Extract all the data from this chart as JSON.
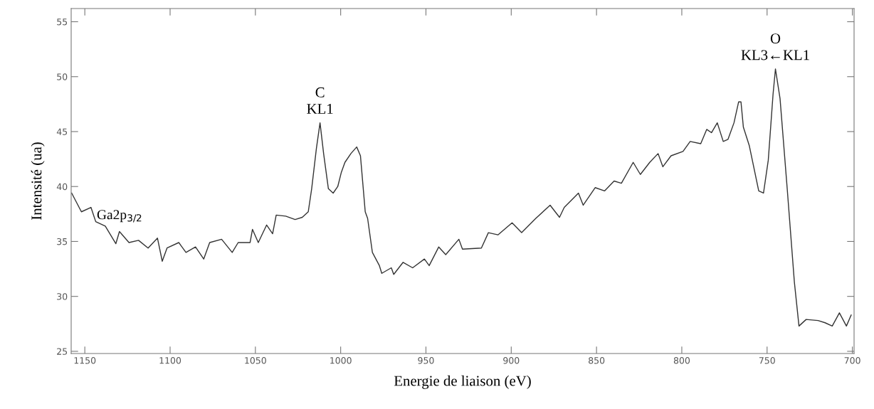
{
  "chart_data": {
    "type": "line",
    "xlabel": "Energie de liaison (eV)",
    "ylabel": "Intensité (ua)",
    "xlim": [
      1158,
      699
    ],
    "ylim": [
      24.8,
      56.2
    ],
    "xticks": [
      1150,
      1100,
      1050,
      1000,
      950,
      900,
      850,
      800,
      750,
      700
    ],
    "yticks": [
      25,
      30,
      35,
      40,
      45,
      50,
      55
    ],
    "grid": false,
    "marker": "none",
    "line_style": "solid",
    "annotations": [
      {
        "text": "Ga2p$_{3/2}$",
        "x": 1143,
        "y": 37.3
      },
      {
        "text": "C\nKL1",
        "x": 1012.1,
        "y": 45.8
      },
      {
        "text": "O\nKL3←KL1",
        "x": 745.1,
        "y": 50.7
      }
    ],
    "series": [
      {
        "color": "#333333",
        "x": [
          1157.7,
          1152,
          1146.4,
          1143.6,
          1138,
          1131.8,
          1129.7,
          1124.1,
          1118.5,
          1112.9,
          1107.4,
          1104.6,
          1101.8,
          1094.9,
          1090.7,
          1085.1,
          1080.3,
          1076.8,
          1069.8,
          1063.6,
          1060.1,
          1053.1,
          1051.7,
          1048.3,
          1043.4,
          1039.9,
          1037.8,
          1032.2,
          1026.7,
          1022.5,
          1019.0,
          1017.0,
          1014.2,
          1012.1,
          1010.0,
          1007.2,
          1004.4,
          1001.7,
          999.6,
          997.5,
          994.0,
          990.6,
          988.4,
          985.6,
          984.2,
          981.4,
          977.3,
          975.9,
          970.3,
          968.9,
          963.4,
          957.8,
          950.9,
          948.1,
          942.5,
          938.4,
          930.7,
          928.6,
          917.5,
          913.4,
          907.8,
          899.5,
          893.9,
          885.6,
          877.2,
          871.7,
          868.9,
          860.6,
          857.8,
          850.8,
          845.3,
          839.7,
          835.4,
          828.5,
          824.3,
          818.8,
          813.9,
          811.1,
          806.3,
          799.3,
          795.1,
          788.9,
          785.4,
          782.6,
          779.2,
          775.7,
          772.9,
          769.4,
          766.7,
          765.3,
          763.9,
          760.4,
          754.9,
          752.1,
          749.3,
          746.5,
          745.1,
          742.4,
          738.2,
          734.0,
          731.3,
          727.1,
          720.1,
          716.0,
          711.8,
          707.6,
          703.5,
          700.7
        ],
        "values": [
          39.4,
          37.7,
          38.1,
          36.8,
          36.4,
          34.8,
          35.9,
          34.9,
          35.1,
          34.4,
          35.3,
          33.2,
          34.4,
          34.9,
          34.0,
          34.5,
          33.4,
          34.9,
          35.2,
          34.0,
          34.9,
          34.9,
          36.1,
          34.9,
          36.5,
          35.7,
          37.4,
          37.3,
          37.0,
          37.2,
          37.7,
          39.8,
          43.5,
          45.8,
          43.0,
          39.8,
          39.4,
          40.0,
          41.3,
          42.2,
          43.0,
          43.6,
          42.8,
          37.7,
          37.1,
          34.0,
          32.8,
          32.1,
          32.6,
          32.0,
          33.1,
          32.6,
          33.4,
          32.8,
          34.5,
          33.8,
          35.2,
          34.3,
          34.4,
          35.8,
          35.6,
          36.7,
          35.8,
          37.1,
          38.3,
          37.2,
          38.1,
          39.4,
          38.3,
          39.9,
          39.6,
          40.5,
          40.3,
          42.2,
          41.1,
          42.2,
          43.0,
          41.8,
          42.8,
          43.2,
          44.1,
          43.9,
          45.2,
          44.9,
          45.8,
          44.1,
          44.3,
          45.8,
          47.7,
          47.7,
          45.4,
          43.7,
          39.6,
          39.4,
          42.4,
          48.4,
          50.7,
          48.0,
          39.8,
          31.3,
          27.3,
          27.9,
          27.8,
          27.6,
          27.3,
          28.5,
          27.3,
          28.3
        ]
      }
    ]
  }
}
